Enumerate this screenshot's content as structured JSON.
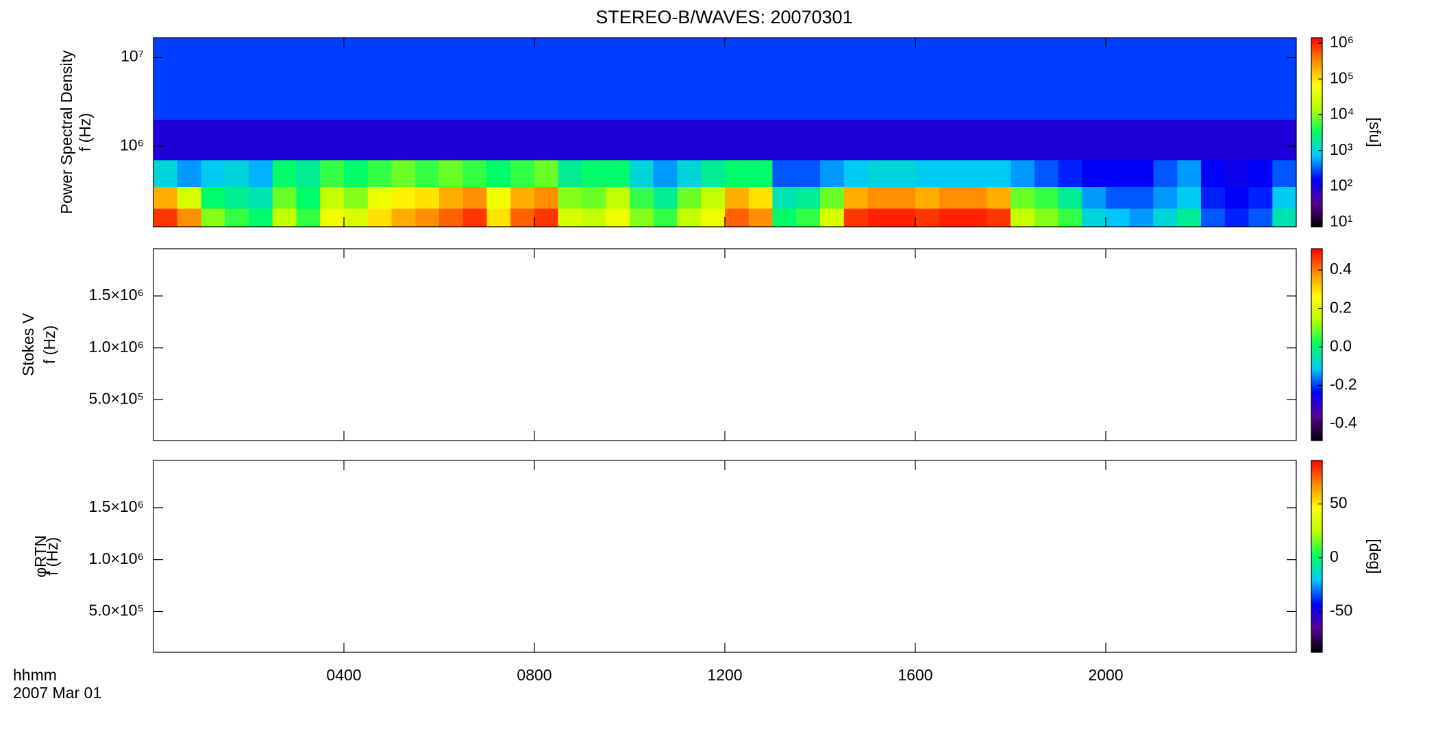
{
  "title": "STEREO-B/WAVES: 20070301",
  "x_caption": [
    "hhmm",
    "2007 Mar 01"
  ],
  "colormap": [
    "#000000",
    "#5a0096",
    "#0000ff",
    "#00c8ff",
    "#00ff60",
    "#b4ff00",
    "#ffff00",
    "#ff8c00",
    "#ff0000"
  ],
  "chart_data": [
    {
      "type": "heatmap",
      "ylabel": [
        "Power Spectral Density",
        "f (Hz)"
      ],
      "xlim": [
        0,
        24
      ],
      "xticks": [
        4,
        8,
        12,
        16,
        20
      ],
      "ylim": [
        124000,
        16600000
      ],
      "ylog": true,
      "yticks": [
        {
          "value": 1000000,
          "label": "10⁶"
        },
        {
          "value": 10000000,
          "label": "10⁷"
        }
      ],
      "zlim": [
        7.4,
        1430000
      ],
      "zlog": true,
      "zticks": [
        {
          "value": 10,
          "label": "10¹"
        },
        {
          "value": 100,
          "label": "10²"
        },
        {
          "value": 1000,
          "label": "10³"
        },
        {
          "value": 10000,
          "label": "10⁴"
        },
        {
          "value": 100000,
          "label": "10⁵"
        },
        {
          "value": 1000000,
          "label": "10⁶"
        }
      ],
      "zlabel": "[sfu]",
      "x_bins": [
        0,
        0.5,
        1,
        1.5,
        2,
        2.5,
        3,
        3.5,
        4,
        4.5,
        5,
        5.5,
        6,
        6.5,
        7,
        7.5,
        8,
        8.5,
        9,
        9.5,
        10,
        10.5,
        11,
        11.5,
        12,
        12.5,
        13,
        13.5,
        14,
        14.5,
        15,
        15.5,
        16,
        16.5,
        17,
        17.5,
        18,
        18.5,
        19,
        19.5,
        20,
        20.5,
        21,
        21.5,
        22,
        22.5,
        23,
        23.5,
        24
      ],
      "y_bins": [
        124000,
        200000,
        350000,
        700000,
        2000000,
        16600000
      ],
      "values": [
        [
          800000,
          300000,
          10000,
          5000,
          3000,
          20000,
          5000,
          50000,
          30000,
          100000,
          200000,
          300000,
          500000,
          800000,
          100000,
          500000,
          800000,
          30000,
          20000,
          50000,
          10000,
          5000,
          20000,
          50000,
          500000,
          300000,
          3000,
          5000,
          30000,
          800000,
          1000000,
          1000000,
          800000,
          1000000,
          1000000,
          800000,
          20000,
          10000,
          5000,
          1000,
          700,
          500,
          1000,
          2000,
          300,
          200,
          300,
          1500
        ],
        [
          200000,
          30000,
          3000,
          2000,
          1500,
          8000,
          3000,
          20000,
          10000,
          50000,
          80000,
          100000,
          200000,
          300000,
          50000,
          200000,
          300000,
          10000,
          8000,
          20000,
          5000,
          2000,
          8000,
          20000,
          200000,
          100000,
          1500,
          2000,
          8000,
          200000,
          300000,
          300000,
          200000,
          300000,
          300000,
          200000,
          8000,
          5000,
          2000,
          500,
          300,
          300,
          500,
          800,
          200,
          150,
          200,
          800
        ],
        [
          1000,
          500,
          800,
          1000,
          600,
          3000,
          2000,
          5000,
          3000,
          5000,
          8000,
          5000,
          8000,
          5000,
          3000,
          5000,
          8000,
          2000,
          3000,
          3000,
          1000,
          500,
          1000,
          2000,
          3000,
          3000,
          300,
          300,
          500,
          800,
          1000,
          1000,
          800,
          800,
          800,
          800,
          500,
          300,
          200,
          150,
          150,
          150,
          300,
          500,
          150,
          120,
          150,
          300
        ],
        [
          90,
          90,
          90,
          90,
          90,
          90,
          90,
          90,
          90,
          90,
          90,
          90,
          90,
          90,
          90,
          90,
          90,
          90,
          90,
          90,
          90,
          90,
          90,
          90,
          90,
          90,
          90,
          90,
          90,
          90,
          90,
          90,
          90,
          90,
          90,
          90,
          90,
          90,
          90,
          90,
          90,
          90,
          90,
          90,
          90,
          90,
          90,
          90
        ],
        [
          250,
          250,
          250,
          250,
          250,
          250,
          250,
          250,
          250,
          250,
          250,
          250,
          250,
          250,
          250,
          250,
          250,
          250,
          250,
          250,
          250,
          250,
          250,
          250,
          250,
          250,
          250,
          250,
          250,
          250,
          250,
          250,
          250,
          250,
          250,
          250,
          250,
          250,
          250,
          250,
          250,
          250,
          250,
          250,
          250,
          250,
          250,
          250
        ]
      ]
    },
    {
      "type": "heatmap",
      "ylabel": [
        "Stokes V",
        "f (Hz)"
      ],
      "xlim": [
        0,
        24
      ],
      "xticks": [
        4,
        8,
        12,
        16,
        20
      ],
      "ylim": [
        107000,
        1955000
      ],
      "yticks": [
        {
          "value": 500000,
          "label": "5.0×10⁵"
        },
        {
          "value": 1000000,
          "label": "1.0×10⁶"
        },
        {
          "value": 1500000,
          "label": "1.5×10⁶"
        }
      ],
      "zlim": [
        -0.487,
        0.511
      ],
      "zticks": [
        -0.4,
        -0.2,
        {
          "value": 0,
          "label": "0.0"
        },
        0.2,
        0.4
      ]
    },
    {
      "type": "heatmap",
      "ylabel": [
        "φRTN",
        "f (Hz)"
      ],
      "xlim": [
        0,
        24
      ],
      "xticks": [
        {
          "value": 4,
          "label": "0400"
        },
        {
          "value": 8,
          "label": "0800"
        },
        {
          "value": 12,
          "label": "1200"
        },
        {
          "value": 16,
          "label": "1600"
        },
        {
          "value": 20,
          "label": "2000"
        }
      ],
      "ylim": [
        107000,
        1955000
      ],
      "yticks": [
        {
          "value": 500000,
          "label": "5.0×10⁵"
        },
        {
          "value": 1000000,
          "label": "1.0×10⁶"
        },
        {
          "value": 1500000,
          "label": "1.5×10⁶"
        }
      ],
      "zlim": [
        -88,
        90.5
      ],
      "zticks": [
        -50,
        0,
        50
      ],
      "zlabel": "[deg]"
    }
  ]
}
